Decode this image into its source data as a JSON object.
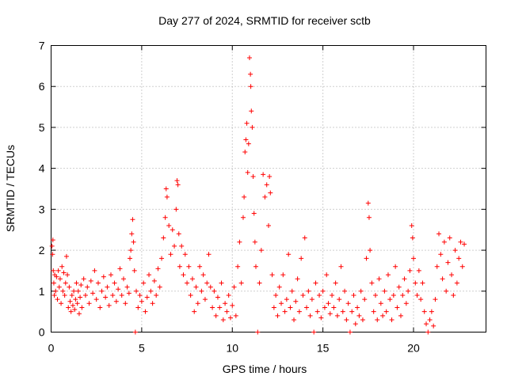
{
  "chart_data": {
    "type": "scatter",
    "title": "Day 277 of 2024, SRMTID for receiver sctb",
    "xlabel": "GPS time / hours",
    "ylabel": "SRMTID / TECUs",
    "xlim": [
      0,
      24
    ],
    "ylim": [
      0,
      7
    ],
    "xticks": [
      0,
      5,
      10,
      15,
      20
    ],
    "yticks": [
      0,
      1,
      2,
      3,
      4,
      5,
      6,
      7
    ],
    "grid": true,
    "marker": "+",
    "series_color": "#ff0000",
    "series": [
      {
        "name": "SRMTID",
        "points": [
          [
            0.05,
            2.1
          ],
          [
            0.08,
            1.9
          ],
          [
            0.1,
            2.25
          ],
          [
            0.12,
            1.5
          ],
          [
            0.15,
            1.2
          ],
          [
            0.18,
            0.9
          ],
          [
            0.2,
            1.4
          ],
          [
            0.25,
            1.0
          ],
          [
            0.3,
            1.35
          ],
          [
            0.35,
            0.8
          ],
          [
            0.4,
            1.5
          ],
          [
            0.45,
            1.1
          ],
          [
            0.5,
            1.3
          ],
          [
            0.55,
            0.7
          ],
          [
            0.6,
            1.6
          ],
          [
            0.65,
            1.0
          ],
          [
            0.7,
            1.45
          ],
          [
            0.75,
            0.9
          ],
          [
            0.8,
            1.2
          ],
          [
            0.85,
            1.85
          ],
          [
            0.9,
            1.4
          ],
          [
            0.95,
            0.6
          ],
          [
            1.0,
            1.1
          ],
          [
            1.05,
            0.75
          ],
          [
            1.1,
            0.5
          ],
          [
            1.15,
            0.9
          ],
          [
            1.2,
            0.65
          ],
          [
            1.25,
            1.0
          ],
          [
            1.3,
            0.55
          ],
          [
            1.35,
            0.8
          ],
          [
            1.4,
            1.2
          ],
          [
            1.45,
            0.7
          ],
          [
            1.5,
            1.0
          ],
          [
            1.55,
            0.45
          ],
          [
            1.6,
            0.85
          ],
          [
            1.65,
            1.15
          ],
          [
            1.7,
            0.6
          ],
          [
            1.8,
            1.3
          ],
          [
            1.9,
            0.9
          ],
          [
            2.0,
            1.1
          ],
          [
            2.1,
            0.7
          ],
          [
            2.2,
            1.25
          ],
          [
            2.3,
            0.95
          ],
          [
            2.4,
            1.5
          ],
          [
            2.5,
            0.8
          ],
          [
            2.6,
            1.2
          ],
          [
            2.7,
            0.6
          ],
          [
            2.8,
            1.0
          ],
          [
            2.9,
            1.35
          ],
          [
            3.0,
            0.85
          ],
          [
            3.1,
            1.1
          ],
          [
            3.2,
            0.65
          ],
          [
            3.3,
            1.4
          ],
          [
            3.4,
            0.9
          ],
          [
            3.5,
            1.2
          ],
          [
            3.6,
            0.75
          ],
          [
            3.7,
            1.05
          ],
          [
            3.8,
            1.55
          ],
          [
            3.9,
            0.9
          ],
          [
            4.0,
            1.3
          ],
          [
            4.1,
            0.7
          ],
          [
            4.2,
            1.1
          ],
          [
            4.3,
            0.95
          ],
          [
            4.35,
            1.8
          ],
          [
            4.4,
            2.0
          ],
          [
            4.45,
            2.4
          ],
          [
            4.5,
            2.75
          ],
          [
            4.55,
            2.2
          ],
          [
            4.6,
            1.5
          ],
          [
            4.65,
            0.0
          ],
          [
            4.7,
            1.0
          ],
          [
            4.8,
            0.6
          ],
          [
            4.9,
            0.9
          ],
          [
            5.0,
            0.75
          ],
          [
            5.1,
            1.2
          ],
          [
            5.2,
            0.5
          ],
          [
            5.3,
            0.85
          ],
          [
            5.4,
            1.4
          ],
          [
            5.5,
            1.0
          ],
          [
            5.6,
            0.7
          ],
          [
            5.7,
            1.25
          ],
          [
            5.8,
            0.9
          ],
          [
            5.9,
            1.55
          ],
          [
            6.0,
            1.1
          ],
          [
            6.1,
            1.8
          ],
          [
            6.2,
            2.3
          ],
          [
            6.3,
            2.8
          ],
          [
            6.35,
            3.5
          ],
          [
            6.4,
            3.3
          ],
          [
            6.5,
            2.6
          ],
          [
            6.6,
            1.9
          ],
          [
            6.7,
            2.5
          ],
          [
            6.8,
            2.1
          ],
          [
            6.9,
            3.0
          ],
          [
            6.95,
            3.7
          ],
          [
            7.0,
            3.6
          ],
          [
            7.05,
            2.4
          ],
          [
            7.1,
            1.6
          ],
          [
            7.2,
            2.1
          ],
          [
            7.3,
            1.4
          ],
          [
            7.4,
            1.9
          ],
          [
            7.5,
            1.2
          ],
          [
            7.6,
            1.6
          ],
          [
            7.7,
            0.9
          ],
          [
            7.8,
            1.3
          ],
          [
            7.9,
            0.5
          ],
          [
            8.0,
            1.1
          ],
          [
            8.1,
            0.7
          ],
          [
            8.2,
            1.6
          ],
          [
            8.3,
            1.0
          ],
          [
            8.4,
            1.4
          ],
          [
            8.5,
            0.8
          ],
          [
            8.6,
            1.2
          ],
          [
            8.7,
            1.9
          ],
          [
            8.8,
            1.1
          ],
          [
            8.9,
            0.6
          ],
          [
            9.0,
            1.0
          ],
          [
            9.1,
            0.4
          ],
          [
            9.2,
            0.85
          ],
          [
            9.3,
            0.6
          ],
          [
            9.4,
            1.2
          ],
          [
            9.5,
            0.3
          ],
          [
            9.6,
            0.7
          ],
          [
            9.7,
            0.5
          ],
          [
            9.8,
            0.9
          ],
          [
            9.9,
            0.35
          ],
          [
            10.0,
            0.65
          ],
          [
            10.1,
            1.1
          ],
          [
            10.2,
            0.4
          ],
          [
            10.3,
            1.6
          ],
          [
            10.4,
            2.2
          ],
          [
            10.5,
            1.2
          ],
          [
            10.6,
            2.8
          ],
          [
            10.65,
            3.3
          ],
          [
            10.7,
            4.4
          ],
          [
            10.75,
            4.7
          ],
          [
            10.8,
            5.1
          ],
          [
            10.85,
            3.9
          ],
          [
            10.9,
            4.6
          ],
          [
            10.95,
            6.7
          ],
          [
            11.0,
            6.3
          ],
          [
            11.02,
            6.0
          ],
          [
            11.05,
            5.4
          ],
          [
            11.1,
            5.0
          ],
          [
            11.15,
            3.8
          ],
          [
            11.2,
            2.9
          ],
          [
            11.25,
            2.2
          ],
          [
            11.3,
            1.6
          ],
          [
            11.4,
            0.0
          ],
          [
            11.5,
            1.2
          ],
          [
            11.6,
            2.0
          ],
          [
            11.7,
            3.85
          ],
          [
            11.8,
            3.3
          ],
          [
            11.9,
            3.6
          ],
          [
            12.0,
            2.6
          ],
          [
            12.05,
            3.8
          ],
          [
            12.1,
            3.4
          ],
          [
            12.2,
            1.4
          ],
          [
            12.3,
            0.6
          ],
          [
            12.4,
            0.9
          ],
          [
            12.5,
            0.4
          ],
          [
            12.6,
            1.1
          ],
          [
            12.7,
            0.7
          ],
          [
            12.8,
            1.4
          ],
          [
            12.9,
            0.5
          ],
          [
            13.0,
            0.8
          ],
          [
            13.1,
            1.9
          ],
          [
            13.2,
            0.6
          ],
          [
            13.3,
            1.0
          ],
          [
            13.4,
            0.3
          ],
          [
            13.5,
            0.75
          ],
          [
            13.6,
            1.3
          ],
          [
            13.7,
            0.5
          ],
          [
            13.8,
            1.8
          ],
          [
            13.9,
            0.9
          ],
          [
            14.0,
            2.3
          ],
          [
            14.1,
            0.6
          ],
          [
            14.2,
            1.0
          ],
          [
            14.3,
            0.4
          ],
          [
            14.4,
            0.8
          ],
          [
            14.5,
            0.0
          ],
          [
            14.6,
            1.2
          ],
          [
            14.7,
            0.5
          ],
          [
            14.8,
            0.9
          ],
          [
            14.9,
            0.35
          ],
          [
            15.0,
            1.0
          ],
          [
            15.1,
            0.6
          ],
          [
            15.2,
            1.4
          ],
          [
            15.3,
            0.7
          ],
          [
            15.4,
            0.45
          ],
          [
            15.5,
            0.9
          ],
          [
            15.6,
            0.6
          ],
          [
            15.7,
            1.2
          ],
          [
            15.8,
            0.4
          ],
          [
            15.9,
            0.8
          ],
          [
            16.0,
            1.6
          ],
          [
            16.1,
            0.5
          ],
          [
            16.2,
            1.0
          ],
          [
            16.3,
            0.3
          ],
          [
            16.4,
            0.7
          ],
          [
            16.5,
            0.0
          ],
          [
            16.6,
            0.5
          ],
          [
            16.7,
            0.9
          ],
          [
            16.8,
            0.2
          ],
          [
            16.9,
            0.6
          ],
          [
            17.0,
            0.4
          ],
          [
            17.1,
            1.0
          ],
          [
            17.2,
            0.3
          ],
          [
            17.3,
            0.8
          ],
          [
            17.4,
            1.8
          ],
          [
            17.5,
            3.15
          ],
          [
            17.55,
            2.8
          ],
          [
            17.6,
            2.0
          ],
          [
            17.7,
            1.2
          ],
          [
            17.8,
            0.5
          ],
          [
            17.9,
            0.9
          ],
          [
            18.0,
            0.3
          ],
          [
            18.1,
            1.3
          ],
          [
            18.2,
            0.7
          ],
          [
            18.3,
            0.4
          ],
          [
            18.4,
            1.0
          ],
          [
            18.5,
            0.5
          ],
          [
            18.6,
            1.4
          ],
          [
            18.7,
            0.8
          ],
          [
            18.8,
            0.3
          ],
          [
            18.9,
            0.9
          ],
          [
            19.0,
            1.6
          ],
          [
            19.1,
            0.6
          ],
          [
            19.2,
            1.1
          ],
          [
            19.3,
            0.4
          ],
          [
            19.4,
            0.9
          ],
          [
            19.5,
            1.3
          ],
          [
            19.6,
            0.7
          ],
          [
            19.7,
            1.0
          ],
          [
            19.8,
            1.5
          ],
          [
            19.9,
            2.6
          ],
          [
            19.95,
            2.3
          ],
          [
            20.0,
            1.8
          ],
          [
            20.1,
            1.2
          ],
          [
            20.2,
            0.9
          ],
          [
            20.3,
            1.5
          ],
          [
            20.4,
            0.8
          ],
          [
            20.5,
            1.2
          ],
          [
            20.6,
            0.5
          ],
          [
            20.7,
            0.2
          ],
          [
            20.8,
            0.0
          ],
          [
            20.9,
            0.3
          ],
          [
            21.0,
            0.5
          ],
          [
            21.1,
            0.15
          ],
          [
            21.2,
            0.8
          ],
          [
            21.3,
            1.6
          ],
          [
            21.4,
            2.4
          ],
          [
            21.5,
            1.9
          ],
          [
            21.6,
            1.3
          ],
          [
            21.7,
            2.2
          ],
          [
            21.8,
            1.0
          ],
          [
            21.9,
            1.7
          ],
          [
            22.0,
            2.3
          ],
          [
            22.1,
            1.4
          ],
          [
            22.2,
            0.9
          ],
          [
            22.3,
            2.0
          ],
          [
            22.4,
            1.2
          ],
          [
            22.5,
            1.8
          ],
          [
            22.6,
            2.2
          ],
          [
            22.7,
            1.6
          ],
          [
            22.8,
            2.15
          ]
        ]
      }
    ]
  }
}
